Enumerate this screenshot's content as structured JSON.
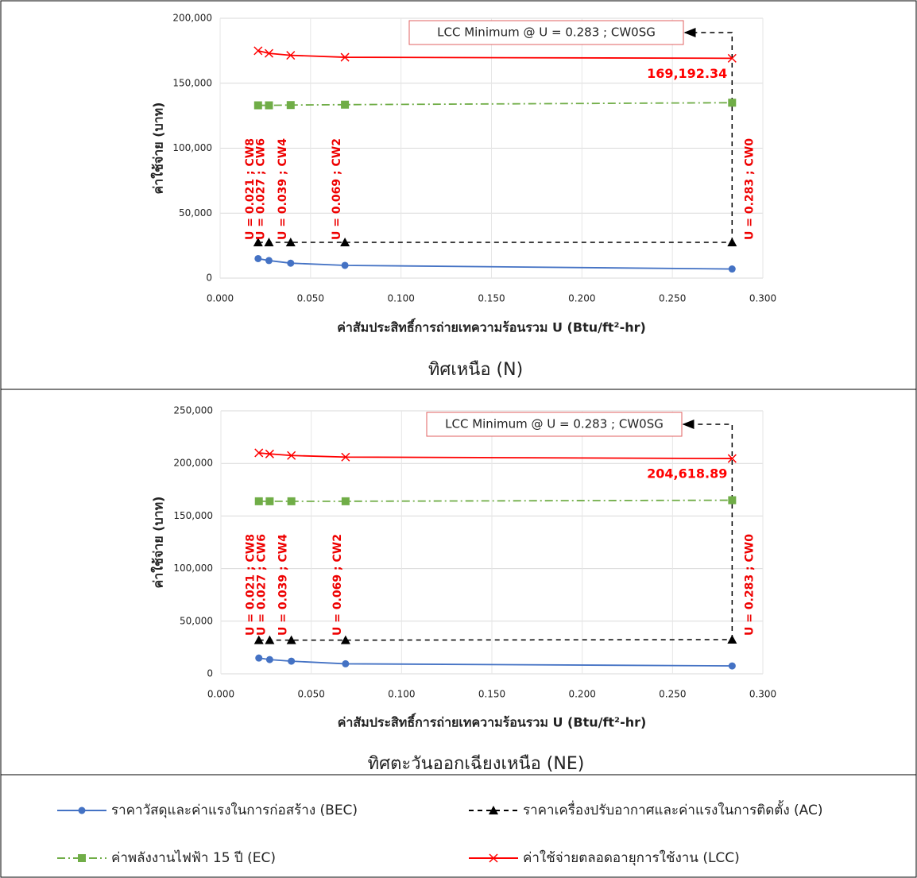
{
  "chart_data": [
    {
      "type": "line",
      "caption": "ทิศเหนือ (N)",
      "x_label": "ค่าสัมประสิทธิ์การถ่ายเทความร้อนรวม U (Btu/ft²-hr)",
      "y_label": "ค่าใช้จ่าย (บาท)",
      "annotation": "LCC Minimum @ U = 0.283 ; CW0SG",
      "x": [
        0.021,
        0.027,
        0.039,
        0.069,
        0.283
      ],
      "point_labels": [
        "U = 0.021 ; CW8",
        "U = 0.027 ; CW6",
        "U = 0.039 ; CW4",
        "U = 0.069 ; CW2",
        "U = 0.283 ; CW0"
      ],
      "xlim": [
        0,
        0.3
      ],
      "xticks": [
        {
          "value": 0,
          "label": "0.000"
        },
        {
          "value": 0.05,
          "label": "0.050"
        },
        {
          "value": 0.1,
          "label": "0.100"
        },
        {
          "value": 0.15,
          "label": "0.150"
        },
        {
          "value": 0.2,
          "label": "0.200"
        },
        {
          "value": 0.25,
          "label": "0.250"
        },
        {
          "value": 0.3,
          "label": "0.300"
        }
      ],
      "ylim": [
        0,
        200000
      ],
      "yticks": [
        0,
        {
          "value": 50000,
          "label": "50,000"
        },
        {
          "value": 100000,
          "label": "100,000"
        },
        {
          "value": 150000,
          "label": "150,000"
        },
        {
          "value": 200000,
          "label": "200,000"
        }
      ],
      "grid": true,
      "series": [
        {
          "name": "ราคาวัสดุและค่าแรงในการก่อสร้าง (BEC)",
          "color": "#4472c4",
          "values": [
            15000,
            13500,
            11500,
            9800,
            7000
          ]
        },
        {
          "name": "ราคาเครื่องปรับอากาศและค่าแรงในการติดตั้ง (AC)",
          "color": "#000000",
          "values": [
            27500,
            27500,
            27500,
            27500,
            27500
          ]
        },
        {
          "name": "ค่าพลังงานไฟฟ้า 15 ปี (EC)",
          "color": "#70ad47",
          "values": [
            133000,
            133000,
            133200,
            133500,
            135000
          ]
        },
        {
          "name": "ค่าใช้จ่ายตลอดอายุการใช้งาน (LCC)",
          "color": "#ff0000",
          "values": [
            175000,
            173000,
            171500,
            170000,
            169192.34
          ],
          "value_labels": [
            null,
            null,
            null,
            null,
            "169,192.34"
          ]
        }
      ]
    },
    {
      "type": "line",
      "caption": "ทิศตะวันออกเฉียงเหนือ (NE)",
      "x_label": "ค่าสัมประสิทธิ์การถ่ายเทความร้อนรวม U (Btu/ft²-hr)",
      "y_label": "ค่าใช้จ่าย (บาท)",
      "annotation": "LCC Minimum @ U = 0.283 ; CW0SG",
      "x": [
        0.021,
        0.027,
        0.039,
        0.069,
        0.283
      ],
      "point_labels": [
        "U = 0.021 ; CW8",
        "U = 0.027 ; CW6",
        "U = 0.039 ; CW4",
        "U = 0.069 ; CW2",
        "U = 0.283 ; CW0"
      ],
      "xlim": [
        0,
        0.3
      ],
      "xticks": [
        {
          "value": 0,
          "label": "0.000"
        },
        {
          "value": 0.05,
          "label": "0.050"
        },
        {
          "value": 0.1,
          "label": "0.100"
        },
        {
          "value": 0.15,
          "label": "0.150"
        },
        {
          "value": 0.2,
          "label": "0.200"
        },
        {
          "value": 0.25,
          "label": "0.250"
        },
        {
          "value": 0.3,
          "label": "0.300"
        }
      ],
      "ylim": [
        0,
        250000
      ],
      "yticks": [
        0,
        {
          "value": 50000,
          "label": "50,000"
        },
        {
          "value": 100000,
          "label": "100,000"
        },
        {
          "value": 150000,
          "label": "150,000"
        },
        {
          "value": 200000,
          "label": "200,000"
        },
        {
          "value": 250000,
          "label": "250,000"
        }
      ],
      "grid": true,
      "series": [
        {
          "color": "#4472c4",
          "values": [
            15000,
            13500,
            12000,
            9500,
            7500
          ]
        },
        {
          "color": "#000000",
          "values": [
            32000,
            32000,
            32000,
            32000,
            32500
          ]
        },
        {
          "color": "#70ad47",
          "values": [
            164000,
            164000,
            164000,
            164000,
            165000
          ]
        },
        {
          "color": "#ff0000",
          "values": [
            210000,
            209000,
            207500,
            206000,
            204618.89
          ],
          "value_labels": [
            null,
            null,
            null,
            null,
            "204,618.89"
          ]
        }
      ]
    }
  ]
}
